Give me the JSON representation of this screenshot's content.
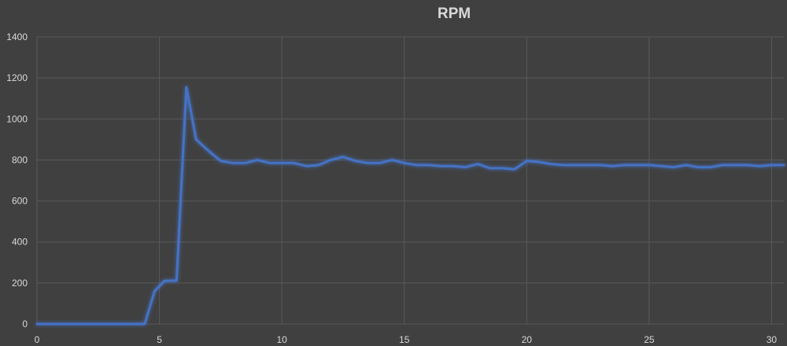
{
  "chart_data": {
    "type": "line",
    "title": "RPM",
    "xlabel": "",
    "ylabel": "",
    "xlim": [
      0,
      30.5
    ],
    "ylim": [
      0,
      1400
    ],
    "x_ticks": [
      0,
      5,
      10,
      15,
      20,
      25,
      30
    ],
    "y_ticks": [
      0,
      200,
      400,
      600,
      800,
      1000,
      1200,
      1400
    ],
    "x_tick_labels": [
      "0",
      "5",
      "10",
      "15",
      "20",
      "25",
      "30"
    ],
    "y_tick_labels": [
      "0",
      "200",
      "400",
      "600",
      "800",
      "1000",
      "1200",
      "1400"
    ],
    "grid": true,
    "legend": "none",
    "colors": {
      "background": "#404040",
      "grid": "#595959",
      "text": "#d9d9d9",
      "line": "#4472c4"
    },
    "series": [
      {
        "x": [
          0,
          0.5,
          1,
          1.5,
          2,
          2.5,
          3,
          3.5,
          4,
          4.4,
          4.8,
          5.2,
          5.7,
          6.1,
          6.5,
          7.0,
          7.5,
          8.0,
          8.5,
          9.0,
          9.5,
          10.0,
          10.5,
          11.0,
          11.5,
          12.0,
          12.5,
          13.0,
          13.5,
          14.0,
          14.5,
          15.0,
          15.5,
          16.0,
          16.5,
          17.0,
          17.5,
          18.0,
          18.5,
          19.0,
          19.5,
          20.0,
          20.5,
          21.0,
          21.5,
          22.0,
          22.5,
          23.0,
          23.5,
          24.0,
          24.5,
          25.0,
          25.5,
          26.0,
          26.5,
          27.0,
          27.5,
          28.0,
          28.5,
          29.0,
          29.5,
          30.0,
          30.5
        ],
        "values": [
          0,
          0,
          0,
          0,
          0,
          0,
          0,
          0,
          0,
          0,
          160,
          210,
          212,
          1155,
          900,
          845,
          795,
          785,
          785,
          800,
          785,
          785,
          785,
          770,
          775,
          800,
          815,
          795,
          785,
          785,
          800,
          785,
          775,
          775,
          770,
          770,
          765,
          780,
          760,
          760,
          755,
          795,
          790,
          780,
          775,
          775,
          775,
          775,
          770,
          775,
          775,
          775,
          770,
          765,
          775,
          765,
          765,
          775,
          775,
          775,
          770,
          775,
          775
        ]
      }
    ]
  }
}
